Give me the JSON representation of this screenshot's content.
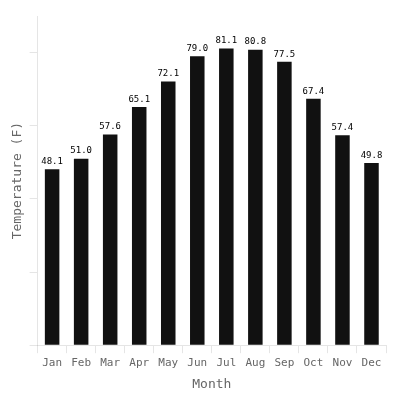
{
  "chart_data": {
    "type": "bar",
    "categories": [
      "Jan",
      "Feb",
      "Mar",
      "Apr",
      "May",
      "Jun",
      "Jul",
      "Aug",
      "Sep",
      "Oct",
      "Nov",
      "Dec"
    ],
    "values": [
      48.1,
      51.0,
      57.6,
      65.1,
      72.1,
      79.0,
      81.1,
      80.8,
      77.5,
      67.4,
      57.4,
      49.8
    ],
    "value_labels": [
      "48.1",
      "51.0",
      "57.6",
      "65.1",
      "72.1",
      "79.0",
      "81.1",
      "80.8",
      "77.5",
      "67.4",
      "57.4",
      "49.8"
    ],
    "color": "#111111",
    "xlabel": "Month",
    "ylabel": "Temperature (F)",
    "ylim": [
      0,
      90
    ],
    "yticks": [
      0,
      20,
      40,
      60,
      80
    ],
    "grid": false,
    "data_labels": true,
    "tick_labels": "x"
  }
}
